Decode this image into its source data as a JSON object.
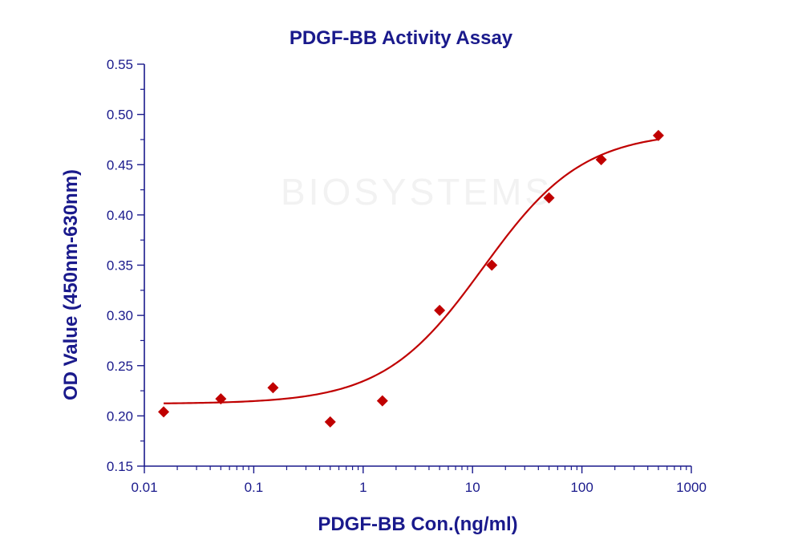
{
  "watermark_text": "BIOSYSTEMS",
  "chart_data": {
    "type": "scatter",
    "title": "PDGF-BB Activity Assay",
    "xlabel": "PDGF-BB Con.(ng/ml)",
    "ylabel": "OD Value (450nm-630nm)",
    "xscale": "log",
    "xlim": [
      0.01,
      1000
    ],
    "ylim": [
      0.15,
      0.55
    ],
    "xticks": [
      "0.01",
      "0.1",
      "1",
      "10",
      "100",
      "1000"
    ],
    "yticks": [
      "0.15",
      "0.20",
      "0.25",
      "0.30",
      "0.35",
      "0.40",
      "0.45",
      "0.50",
      "0.55"
    ],
    "grid": false,
    "series": [
      {
        "marker": "diamond",
        "color": "#c00000",
        "x": [
          0.015,
          0.05,
          0.15,
          0.5,
          1.5,
          5,
          15,
          50,
          150,
          500
        ],
        "y": [
          0.204,
          0.217,
          0.228,
          0.194,
          0.215,
          0.305,
          0.35,
          0.417,
          0.455,
          0.479
        ]
      }
    ],
    "fit_curve": {
      "type": "4PL",
      "color": "#c00000",
      "bottom": 0.212,
      "top": 0.483,
      "ec50": 12.5,
      "hill": 0.95
    }
  }
}
